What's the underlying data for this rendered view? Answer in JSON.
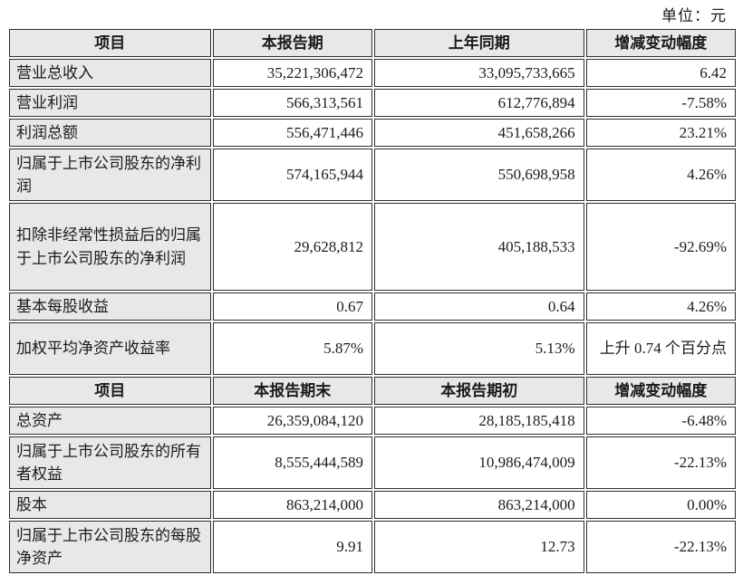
{
  "unit_label": "单位：元",
  "colors": {
    "header_background": "#e8e8e8",
    "item_column_background": "#e8e8e8",
    "border": "#2e2e2e",
    "text": "#1b1b1b"
  },
  "table1": {
    "headers": {
      "item": "项目",
      "current": "本报告期",
      "prior": "上年同期",
      "change": "增减变动幅度"
    },
    "rows": [
      {
        "item": "营业总收入",
        "current": "35,221,306,472",
        "prior": "33,095,733,665",
        "change": "6.42"
      },
      {
        "item": "营业利润",
        "current": "566,313,561",
        "prior": "612,776,894",
        "change": "-7.58%"
      },
      {
        "item": "利润总额",
        "current": "556,471,446",
        "prior": "451,658,266",
        "change": "23.21%"
      },
      {
        "item": "归属于上市公司股东的净利润",
        "current": "574,165,944",
        "prior": "550,698,958",
        "change": "4.26%"
      },
      {
        "item": "扣除非经常性损益后的归属于上市公司股东的净利润",
        "current": "29,628,812",
        "prior": "405,188,533",
        "change": "-92.69%"
      },
      {
        "item": "基本每股收益",
        "current": "0.67",
        "prior": "0.64",
        "change": "4.26%"
      },
      {
        "item": "加权平均净资产收益率",
        "current": "5.87%",
        "prior": "5.13%",
        "change": "上升 0.74 个百分点"
      }
    ]
  },
  "table2": {
    "headers": {
      "item": "项目",
      "current": "本报告期末",
      "prior": "本报告期初",
      "change": "增减变动幅度"
    },
    "rows": [
      {
        "item": "总资产",
        "current": "26,359,084,120",
        "prior": "28,185,185,418",
        "change": "-6.48%"
      },
      {
        "item": "归属于上市公司股东的所有者权益",
        "current": "8,555,444,589",
        "prior": "10,986,474,009",
        "change": "-22.13%"
      },
      {
        "item": "股本",
        "current": "863,214,000",
        "prior": "863,214,000",
        "change": "0.00%"
      },
      {
        "item": "归属于上市公司股东的每股净资产",
        "current": "9.91",
        "prior": "12.73",
        "change": "-22.13%"
      }
    ]
  }
}
